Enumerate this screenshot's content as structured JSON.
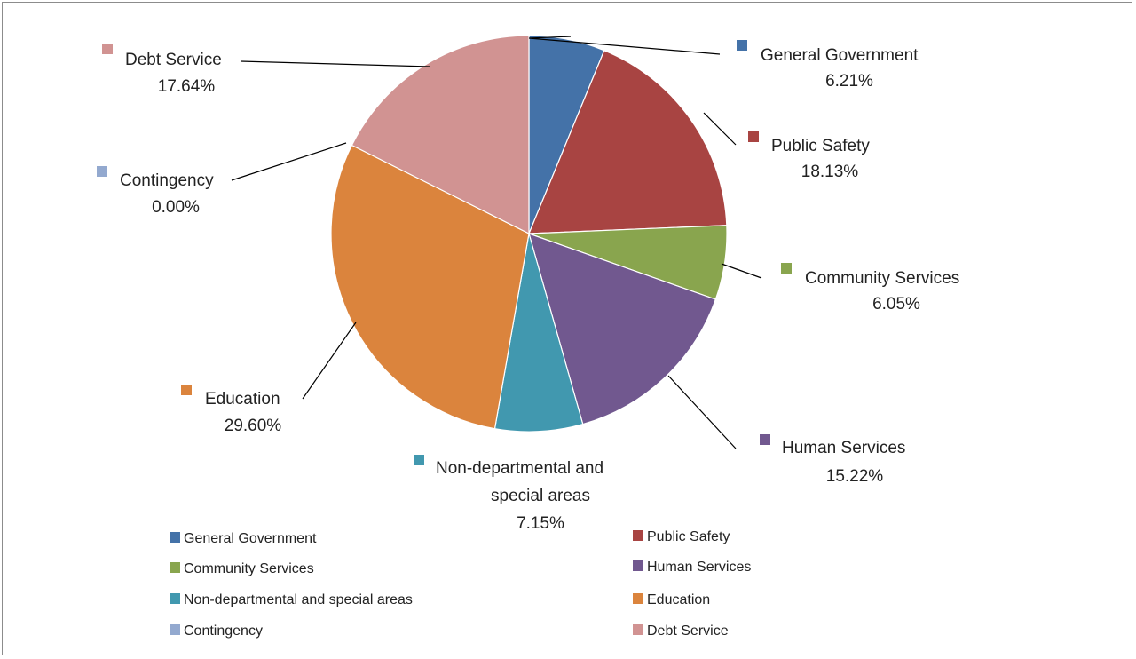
{
  "chart_data": {
    "type": "pie",
    "title": "",
    "legend_placement": "bottom",
    "slices": [
      {
        "name": "General Government",
        "value": 6.21,
        "label": "6.21%",
        "color": "#4472A8"
      },
      {
        "name": "Public Safety",
        "value": 18.13,
        "label": "18.13%",
        "color": "#A84442"
      },
      {
        "name": "Community Services",
        "value": 6.05,
        "label": "6.05%",
        "color": "#89A54E"
      },
      {
        "name": "Human Services",
        "value": 15.22,
        "label": "15.22%",
        "color": "#71588F"
      },
      {
        "name": "Non-departmental and special areas",
        "name_lines": [
          "Non-departmental and",
          "special areas"
        ],
        "value": 7.15,
        "label": "7.15%",
        "color": "#4198AF"
      },
      {
        "name": "Education",
        "value": 29.6,
        "label": "29.60%",
        "color": "#DB843D"
      },
      {
        "name": "Contingency",
        "value": 0.0,
        "label": "0.00%",
        "color": "#93A9CF"
      },
      {
        "name": "Debt Service",
        "value": 17.64,
        "label": "17.64%",
        "color": "#D19392"
      }
    ]
  }
}
